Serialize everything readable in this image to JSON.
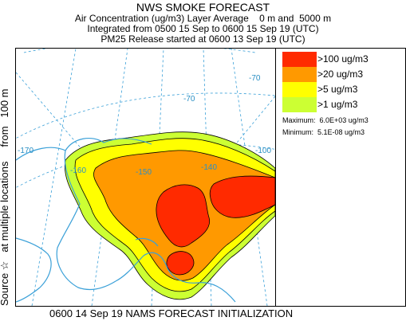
{
  "header": {
    "title": "NWS SMOKE FORECAST",
    "line2": "Air Concentration (ug/m3) Layer Average    0 m and  5000 m",
    "line3": "Integrated from 0500 15 Sep to 0600 15 Sep 19 (UTC)",
    "line4": "PM25 Release started at 0600 13 Sep 19 (UTC)"
  },
  "side_label": "Source ☆   at multiple locations     from   100 m",
  "footer": "0600 14 Sep 19 NAMS FORECAST INITIALIZATION",
  "legend": {
    "items": [
      {
        "label": ">100 ug/m3",
        "color": "#ff2a00"
      },
      {
        "label": ">20 ug/m3",
        "color": "#ff9900"
      },
      {
        "label": ">5 ug/m3",
        "color": "#ffff00"
      },
      {
        "label": ">1 ug/m3",
        "color": "#ccff33"
      }
    ],
    "maximum": "Maximum:  6.0E+03 ug/m3",
    "minimum": "Minimum:  5.1E-08 ug/m3"
  },
  "map": {
    "grid_labels": [
      "-170",
      "-160",
      "-150",
      "-140",
      "-100",
      "-70",
      "-70"
    ],
    "coast_color": "#3aa0d8",
    "grid_color": "#3aa0d8"
  }
}
